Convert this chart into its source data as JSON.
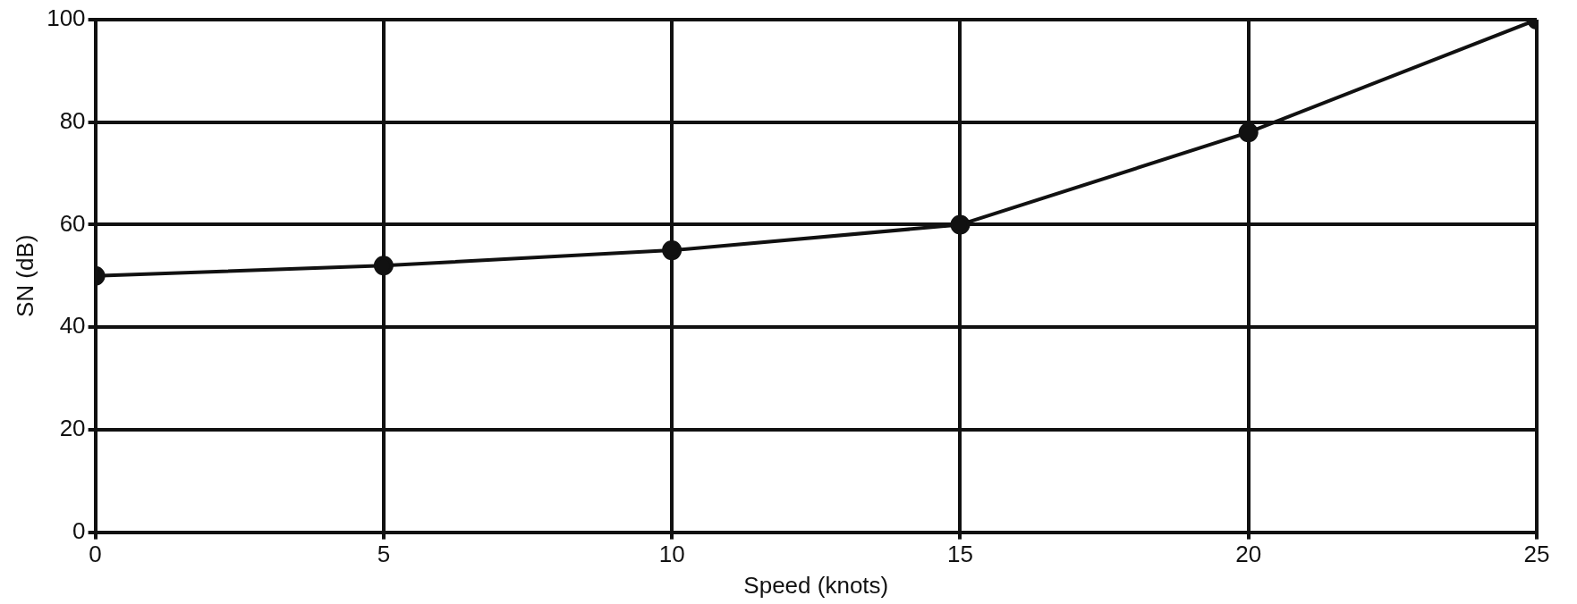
{
  "chart_data": {
    "type": "line",
    "xlabel": "Speed (knots)",
    "ylabel": "SN (dB)",
    "x": [
      0,
      5,
      10,
      15,
      20,
      25
    ],
    "series": [
      {
        "color": "#111111",
        "values": [
          50,
          52,
          55,
          60,
          78,
          100
        ]
      }
    ],
    "xlim": [
      0,
      25
    ],
    "xticks": [
      0,
      5,
      10,
      15,
      20,
      25
    ],
    "ylim": [
      0,
      100
    ],
    "yticks": [
      0,
      20,
      40,
      60,
      80,
      100
    ],
    "grid": true,
    "legend": false,
    "marker": "circle",
    "line_style": "solid"
  }
}
